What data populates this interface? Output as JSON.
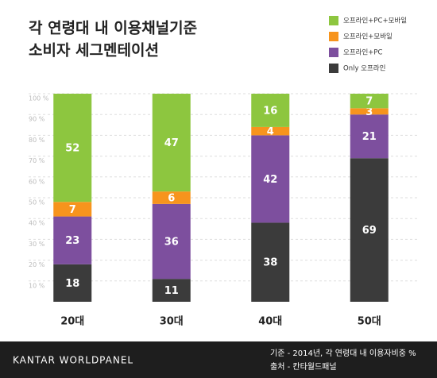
{
  "chart_data": {
    "type": "stacked_bar",
    "title": [
      "각 연령대 내 이용채널기준",
      "소비자 세그멘테이션"
    ],
    "categories": [
      "20대",
      "30대",
      "40대",
      "50대"
    ],
    "series": [
      {
        "name": "Only 오프라인",
        "color": "#3b3b3b",
        "values": [
          18,
          11,
          38,
          69
        ]
      },
      {
        "name": "오프라인+PC",
        "color": "#7d4f9e",
        "values": [
          23,
          36,
          42,
          21
        ]
      },
      {
        "name": "오프라인+모바일",
        "color": "#f7941d",
        "values": [
          7,
          6,
          4,
          3
        ]
      },
      {
        "name": "오프라인+PC+모바일",
        "color": "#8dc63f",
        "values": [
          52,
          47,
          16,
          7
        ]
      }
    ],
    "ylim": [
      0,
      100
    ],
    "yticks": [
      {
        "value": 10,
        "label": "10 %"
      },
      {
        "value": 20,
        "label": "20 %"
      },
      {
        "value": 30,
        "label": "30 %"
      },
      {
        "value": 40,
        "label": "40 %"
      },
      {
        "value": 50,
        "label": "50 %"
      },
      {
        "value": 60,
        "label": "60 %"
      },
      {
        "value": 70,
        "label": "70 %"
      },
      {
        "value": 80,
        "label": "80 %"
      },
      {
        "value": 90,
        "label": "90 %"
      },
      {
        "value": 100,
        "label": "100 %"
      }
    ],
    "grid": true,
    "brand": "KANTAR WORLDPANEL",
    "notes": [
      "기준 - 2014년, 각 연령대 내 이용자비중 %",
      "출처 - 칸타월드패널"
    ]
  }
}
